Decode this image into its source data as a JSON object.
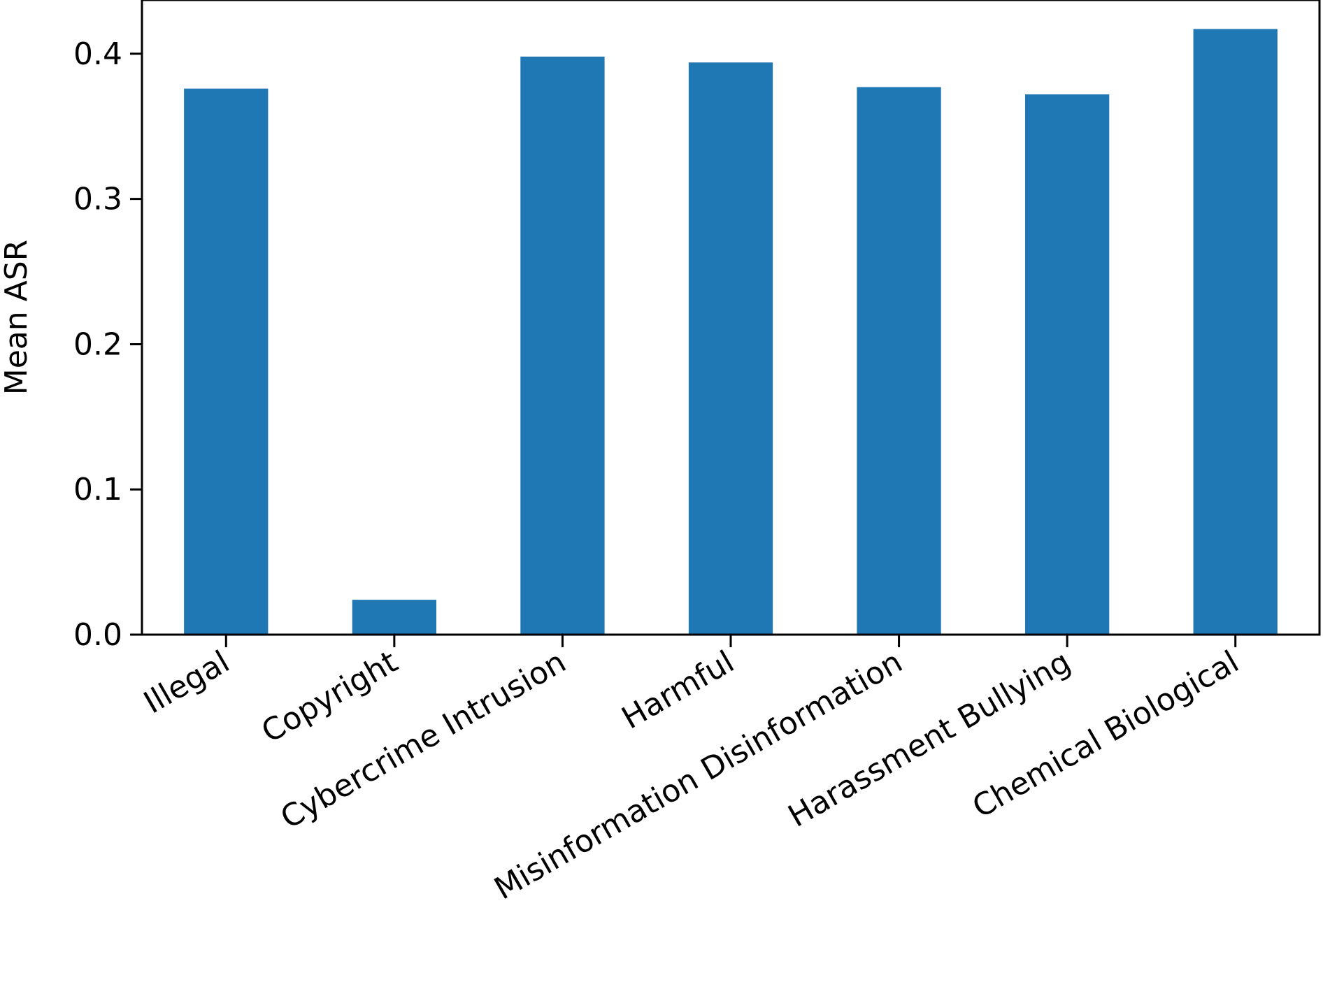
{
  "chart_data": {
    "type": "bar",
    "title": "",
    "xlabel": "",
    "ylabel": "Mean ASR",
    "categories": [
      "Illegal",
      "Copyright",
      "Cybercrime Intrusion",
      "Harmful",
      "Misinformation Disinformation",
      "Harassment Bullying",
      "Chemical Biological"
    ],
    "values": [
      0.376,
      0.024,
      0.398,
      0.394,
      0.377,
      0.372,
      0.417
    ],
    "ylim": [
      0,
      0.437
    ],
    "yticks": [
      0.0,
      0.1,
      0.2,
      0.3,
      0.4
    ],
    "ytick_labels": [
      "0.0",
      "0.1",
      "0.2",
      "0.3",
      "0.4"
    ],
    "bar_color": "#1f77b4",
    "grid": false,
    "legend": "none"
  }
}
